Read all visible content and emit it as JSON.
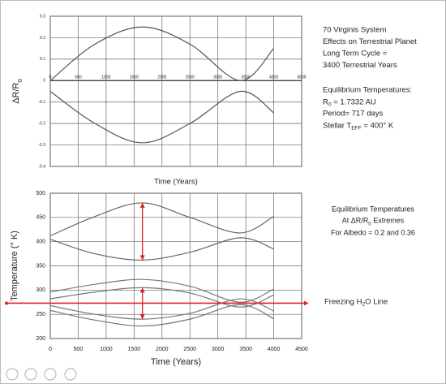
{
  "chart_data": [
    {
      "type": "line",
      "xlabel": "Time (Years)",
      "ylabel": [
        "ΔR/R",
        "0"
      ],
      "xlim": [
        0,
        4500
      ],
      "ylim": [
        -0.4,
        0.3
      ],
      "xticks": [
        0,
        500,
        1000,
        1500,
        2000,
        2500,
        3000,
        3500,
        4000,
        4500
      ],
      "yticks": [
        0.3,
        0.2,
        0.1,
        0,
        -0.1,
        -0.2,
        -0.3,
        -0.4
      ],
      "grid": true,
      "x": [
        0,
        800,
        1650,
        2500,
        3400,
        4000
      ],
      "series": [
        {
          "color": "#555555",
          "values": [
            0.0,
            0.17,
            0.25,
            0.17,
            0.0,
            0.15
          ]
        },
        {
          "color": "#555555",
          "values": [
            -0.05,
            -0.2,
            -0.29,
            -0.2,
            -0.05,
            -0.15
          ]
        }
      ],
      "annotations": [
        [
          "70 Virginis System",
          "Effects on Terrestrial Planet",
          "Long Term Cycle =",
          "3400 Terrestrial Years"
        ],
        [
          "Equilibrium Temperatures:",
          [
            "R",
            "0",
            " = 1.7332  AU"
          ],
          "Period= 717 days",
          [
            "Stellar T",
            "EFF",
            " = 400° K"
          ]
        ]
      ]
    },
    {
      "type": "line",
      "xlabel": "Time (Years)",
      "ylabel": "Temperature (° K)",
      "xlim": [
        0,
        4500
      ],
      "ylim": [
        200,
        500
      ],
      "xticks": [
        0,
        500,
        1000,
        1500,
        2000,
        2500,
        3000,
        3500,
        4000,
        4500
      ],
      "yticks": [
        200,
        250,
        300,
        350,
        400,
        450,
        500
      ],
      "grid": true,
      "x": [
        0,
        800,
        1650,
        2500,
        3400,
        4000
      ],
      "series": [
        {
          "color": "#666666",
          "values": [
            412,
            452,
            480,
            450,
            418,
            452
          ]
        },
        {
          "color": "#666666",
          "values": [
            405,
            375,
            362,
            378,
            408,
            385
          ]
        },
        {
          "color": "#777777",
          "values": [
            296,
            312,
            322,
            308,
            275,
            302
          ]
        },
        {
          "color": "#777777",
          "values": [
            282,
            296,
            305,
            294,
            265,
            290
          ]
        },
        {
          "color": "#777777",
          "values": [
            268,
            250,
            240,
            252,
            282,
            257
          ]
        },
        {
          "color": "#777777",
          "values": [
            258,
            238,
            226,
            240,
            270,
            241
          ]
        }
      ],
      "arrows": [
        {
          "x": 1650,
          "from": 480,
          "to": 362,
          "color": "#e02020"
        },
        {
          "x": 1650,
          "from": 305,
          "to": 240,
          "color": "#e02020"
        }
      ],
      "reference_line": {
        "value": 273,
        "label": [
          "Freezing H",
          "2",
          "O Line"
        ],
        "color": "#e02020"
      },
      "annotations": [
        [
          "Equilibrium Temperatures",
          [
            "At ΔR/R",
            "0",
            " Extremes"
          ],
          "For Albedo = 0.2 and 0.36"
        ]
      ]
    }
  ]
}
